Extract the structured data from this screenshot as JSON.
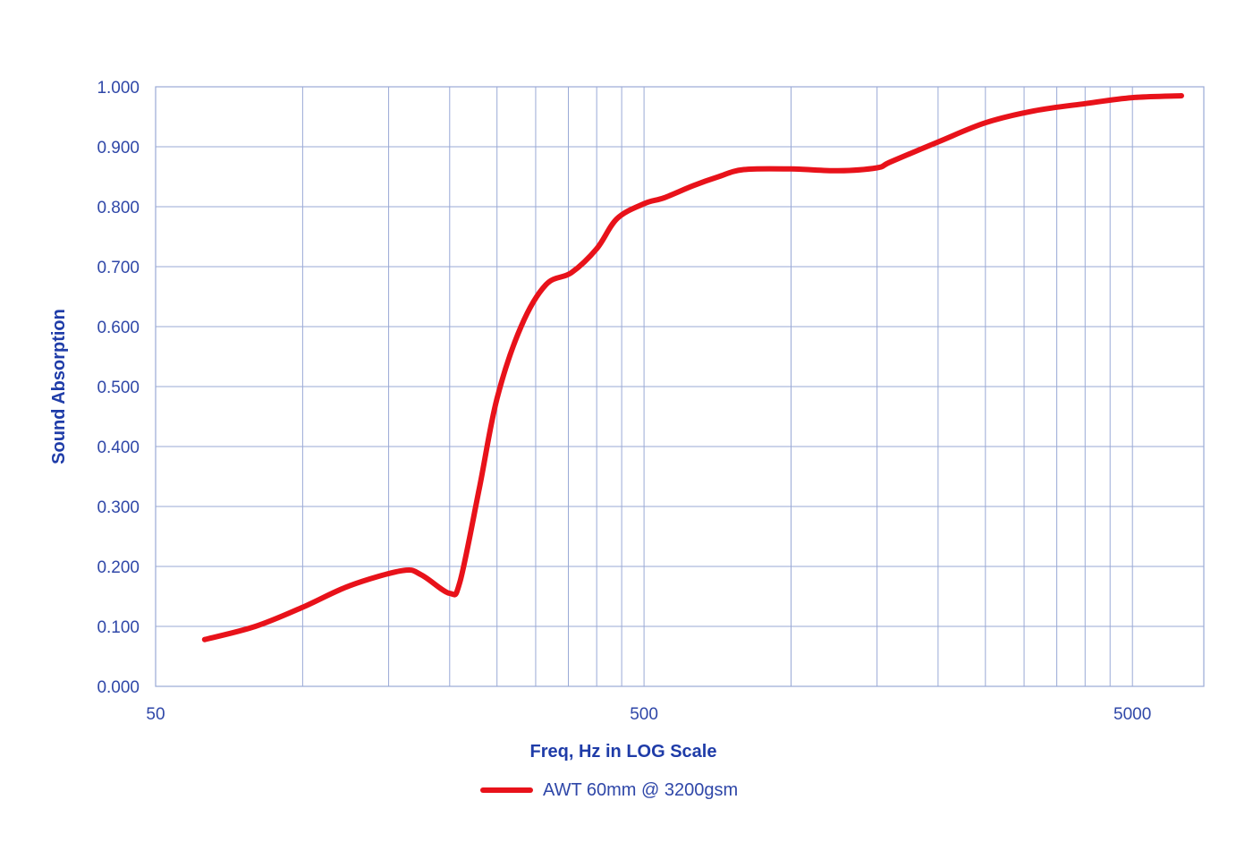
{
  "chart_data": {
    "type": "line",
    "xlabel": "Freq, Hz in LOG Scale",
    "ylabel": "Sound Absorption",
    "x_scale": "log",
    "xlim": [
      50,
      7000
    ],
    "ylim": [
      0,
      1
    ],
    "x_tick_labels": [
      {
        "value": 50,
        "label": "50"
      },
      {
        "value": 500,
        "label": "500"
      },
      {
        "value": 5000,
        "label": "5000"
      }
    ],
    "x_gridlines": [
      100,
      150,
      200,
      250,
      300,
      350,
      400,
      450,
      500,
      1000,
      1500,
      2000,
      2500,
      3000,
      3500,
      4000,
      4500,
      5000
    ],
    "y_ticks": [
      {
        "value": 0.0,
        "label": "0.000"
      },
      {
        "value": 0.1,
        "label": "0.100"
      },
      {
        "value": 0.2,
        "label": "0.200"
      },
      {
        "value": 0.3,
        "label": "0.300"
      },
      {
        "value": 0.4,
        "label": "0.400"
      },
      {
        "value": 0.5,
        "label": "0.500"
      },
      {
        "value": 0.6,
        "label": "0.600"
      },
      {
        "value": 0.7,
        "label": "0.700"
      },
      {
        "value": 0.8,
        "label": "0.800"
      },
      {
        "value": 0.9,
        "label": "0.900"
      },
      {
        "value": 1.0,
        "label": "1.000"
      }
    ],
    "grid": true,
    "legend_position": "bottom-center",
    "colors": {
      "grid": "#9aa9d6",
      "axis_text": "#2f47a8",
      "series": "#e8121a"
    },
    "series": [
      {
        "name": "AWT 60mm @ 3200gsm",
        "x": [
          63,
          80,
          100,
          125,
          160,
          175,
          200,
          210,
          230,
          250,
          280,
          315,
          355,
          400,
          440,
          500,
          550,
          630,
          710,
          800,
          1000,
          1250,
          1500,
          1600,
          2000,
          2500,
          3150,
          4000,
          5000,
          6300
        ],
        "y": [
          0.078,
          0.1,
          0.132,
          0.168,
          0.193,
          0.186,
          0.155,
          0.175,
          0.33,
          0.48,
          0.6,
          0.67,
          0.69,
          0.73,
          0.78,
          0.805,
          0.815,
          0.835,
          0.85,
          0.862,
          0.863,
          0.86,
          0.865,
          0.875,
          0.908,
          0.94,
          0.96,
          0.972,
          0.982,
          0.985
        ]
      }
    ]
  }
}
